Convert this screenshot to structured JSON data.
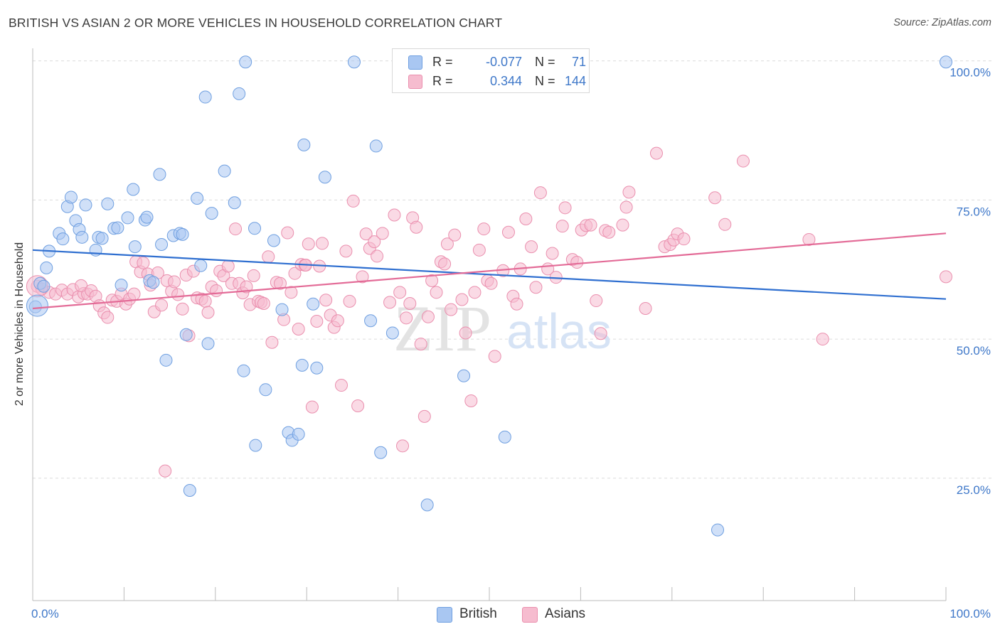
{
  "title": "BRITISH VS ASIAN 2 OR MORE VEHICLES IN HOUSEHOLD CORRELATION CHART",
  "source": "Source: ZipAtlas.com",
  "watermark": {
    "zip": "ZIP",
    "atlas": "atlas"
  },
  "legend": {
    "british": {
      "r_label": "R =",
      "r_value": "-0.077",
      "n_label": "N =",
      "n_value": "71"
    },
    "asians": {
      "r_label": "R =",
      "r_value": "0.344",
      "n_label": "N =",
      "n_value": "144"
    }
  },
  "bottom_legend": {
    "british": "British",
    "asians": "Asians"
  },
  "colors": {
    "british_fill": "#a9c7f2",
    "british_stroke": "#6f9fe0",
    "british_line": "#2f6fd0",
    "asians_fill": "#f6bccf",
    "asians_stroke": "#ea8fae",
    "asians_line": "#e36b97",
    "tick_text": "#3f78c9"
  },
  "chart_data": {
    "type": "scatter",
    "title": "BRITISH VS ASIAN 2 OR MORE VEHICLES IN HOUSEHOLD CORRELATION CHART",
    "xlabel": "",
    "ylabel": "2 or more Vehicles in Household",
    "xlim": [
      0,
      100
    ],
    "ylim": [
      3,
      102
    ],
    "x_tick_labels": [
      "0.0%",
      "100.0%"
    ],
    "y_ticks": [
      25,
      50,
      75,
      100
    ],
    "y_tick_labels": [
      "25.0%",
      "50.0%",
      "75.0%",
      "100.0%"
    ],
    "grid": true,
    "legend_position": "top-center",
    "series": [
      {
        "name": "British",
        "r": -0.077,
        "n": 71,
        "trend": {
          "x": [
            0,
            100
          ],
          "y": [
            66.0,
            57.2
          ]
        },
        "points": [
          [
            0.3,
            55.8
          ],
          [
            0.8,
            60.0
          ],
          [
            1.2,
            59.5
          ],
          [
            1.5,
            62.8
          ],
          [
            1.8,
            65.8
          ],
          [
            2.9,
            69.0
          ],
          [
            3.3,
            68.0
          ],
          [
            3.8,
            73.8
          ],
          [
            4.2,
            75.5
          ],
          [
            4.7,
            71.3
          ],
          [
            5.1,
            69.7
          ],
          [
            5.4,
            68.3
          ],
          [
            5.8,
            74.1
          ],
          [
            6.9,
            66.0
          ],
          [
            7.2,
            68.3
          ],
          [
            7.6,
            68.1
          ],
          [
            8.2,
            74.3
          ],
          [
            8.9,
            69.9
          ],
          [
            9.3,
            70.0
          ],
          [
            9.7,
            59.7
          ],
          [
            10.4,
            71.8
          ],
          [
            11.0,
            76.9
          ],
          [
            11.2,
            66.6
          ],
          [
            12.3,
            71.4
          ],
          [
            12.5,
            71.9
          ],
          [
            12.8,
            60.5
          ],
          [
            13.2,
            60.2
          ],
          [
            13.9,
            79.6
          ],
          [
            14.1,
            67.0
          ],
          [
            14.6,
            46.2
          ],
          [
            15.4,
            68.6
          ],
          [
            16.1,
            69.0
          ],
          [
            16.4,
            68.8
          ],
          [
            16.8,
            50.8
          ],
          [
            17.2,
            22.8
          ],
          [
            18.0,
            75.3
          ],
          [
            18.4,
            63.2
          ],
          [
            18.9,
            93.5
          ],
          [
            19.2,
            49.2
          ],
          [
            19.6,
            72.6
          ],
          [
            21.0,
            80.2
          ],
          [
            22.1,
            74.5
          ],
          [
            22.6,
            94.1
          ],
          [
            23.1,
            44.3
          ],
          [
            23.3,
            99.8
          ],
          [
            24.3,
            69.9
          ],
          [
            24.4,
            30.9
          ],
          [
            25.5,
            40.9
          ],
          [
            26.4,
            67.7
          ],
          [
            27.3,
            55.3
          ],
          [
            28.0,
            33.2
          ],
          [
            28.4,
            31.8
          ],
          [
            29.1,
            32.9
          ],
          [
            29.5,
            45.3
          ],
          [
            29.7,
            84.9
          ],
          [
            30.7,
            56.3
          ],
          [
            31.1,
            44.8
          ],
          [
            32.0,
            79.1
          ],
          [
            35.2,
            99.8
          ],
          [
            37.0,
            53.3
          ],
          [
            37.6,
            84.7
          ],
          [
            38.1,
            29.6
          ],
          [
            39.4,
            51.1
          ],
          [
            43.2,
            20.2
          ],
          [
            47.2,
            43.4
          ],
          [
            51.7,
            32.4
          ],
          [
            75.0,
            15.7
          ],
          [
            100.0,
            99.8
          ]
        ],
        "big_points": [
          [
            0.5,
            56.0
          ]
        ]
      },
      {
        "name": "Asians",
        "r": 0.344,
        "n": 144,
        "trend": {
          "x": [
            0,
            100
          ],
          "y": [
            55.5,
            69.0
          ]
        },
        "points": [
          [
            0.5,
            59.5
          ],
          [
            1.0,
            59.0
          ],
          [
            1.8,
            58.4
          ],
          [
            2.5,
            58.1
          ],
          [
            3.2,
            58.8
          ],
          [
            3.8,
            58.1
          ],
          [
            4.4,
            58.9
          ],
          [
            5.0,
            57.6
          ],
          [
            5.6,
            58.2
          ],
          [
            6.0,
            58.1
          ],
          [
            5.3,
            59.6
          ],
          [
            6.4,
            58.7
          ],
          [
            6.9,
            57.7
          ],
          [
            7.3,
            56.0
          ],
          [
            7.8,
            54.7
          ],
          [
            8.2,
            53.9
          ],
          [
            8.7,
            57.0
          ],
          [
            9.2,
            56.8
          ],
          [
            9.7,
            58.1
          ],
          [
            10.2,
            56.3
          ],
          [
            10.6,
            57.2
          ],
          [
            11.1,
            58.1
          ],
          [
            11.3,
            63.9
          ],
          [
            11.8,
            62.1
          ],
          [
            12.1,
            63.7
          ],
          [
            12.6,
            61.7
          ],
          [
            12.9,
            59.7
          ],
          [
            13.3,
            54.9
          ],
          [
            13.7,
            61.9
          ],
          [
            14.1,
            56.1
          ],
          [
            14.7,
            60.5
          ],
          [
            15.2,
            58.6
          ],
          [
            15.5,
            60.3
          ],
          [
            15.9,
            58.0
          ],
          [
            16.4,
            55.4
          ],
          [
            16.8,
            61.5
          ],
          [
            17.1,
            50.6
          ],
          [
            17.6,
            62.2
          ],
          [
            18.0,
            57.4
          ],
          [
            18.5,
            57.2
          ],
          [
            18.9,
            56.8
          ],
          [
            19.2,
            54.8
          ],
          [
            19.6,
            59.4
          ],
          [
            20.1,
            58.7
          ],
          [
            20.5,
            62.2
          ],
          [
            20.9,
            61.4
          ],
          [
            21.4,
            63.1
          ],
          [
            21.8,
            60.0
          ],
          [
            22.2,
            69.8
          ],
          [
            22.6,
            60.0
          ],
          [
            23.0,
            58.3
          ],
          [
            23.4,
            59.4
          ],
          [
            23.8,
            56.2
          ],
          [
            24.2,
            61.4
          ],
          [
            24.7,
            56.8
          ],
          [
            25.0,
            56.6
          ],
          [
            25.3,
            56.4
          ],
          [
            25.8,
            64.8
          ],
          [
            26.2,
            49.4
          ],
          [
            26.7,
            60.2
          ],
          [
            27.1,
            60.0
          ],
          [
            27.5,
            53.5
          ],
          [
            27.9,
            69.1
          ],
          [
            28.3,
            58.4
          ],
          [
            28.7,
            61.8
          ],
          [
            29.1,
            51.8
          ],
          [
            29.4,
            63.4
          ],
          [
            29.8,
            63.3
          ],
          [
            30.2,
            67.1
          ],
          [
            30.6,
            37.8
          ],
          [
            31.1,
            53.2
          ],
          [
            31.4,
            63.1
          ],
          [
            31.7,
            67.2
          ],
          [
            32.1,
            57.0
          ],
          [
            32.6,
            54.3
          ],
          [
            33.0,
            52.1
          ],
          [
            33.4,
            53.3
          ],
          [
            33.8,
            41.7
          ],
          [
            34.3,
            65.8
          ],
          [
            34.7,
            56.8
          ],
          [
            35.1,
            74.8
          ],
          [
            35.6,
            38.0
          ],
          [
            36.1,
            61.2
          ],
          [
            36.5,
            68.9
          ],
          [
            36.9,
            66.3
          ],
          [
            37.4,
            67.5
          ],
          [
            37.7,
            64.9
          ],
          [
            38.3,
            69.0
          ],
          [
            39.1,
            56.6
          ],
          [
            39.6,
            72.3
          ],
          [
            40.2,
            58.4
          ],
          [
            40.5,
            30.8
          ],
          [
            40.9,
            53.8
          ],
          [
            41.3,
            56.4
          ],
          [
            41.6,
            71.8
          ],
          [
            42.0,
            70.1
          ],
          [
            42.5,
            49.1
          ],
          [
            42.9,
            36.1
          ],
          [
            43.3,
            54.0
          ],
          [
            43.7,
            60.5
          ],
          [
            44.2,
            58.4
          ],
          [
            44.7,
            63.9
          ],
          [
            45.1,
            63.5
          ],
          [
            45.4,
            67.1
          ],
          [
            45.8,
            55.3
          ],
          [
            46.2,
            68.7
          ],
          [
            47.0,
            57.1
          ],
          [
            47.4,
            51.1
          ],
          [
            48.0,
            38.9
          ],
          [
            48.4,
            58.4
          ],
          [
            48.9,
            66.0
          ],
          [
            49.4,
            69.8
          ],
          [
            49.8,
            60.5
          ],
          [
            50.2,
            60.0
          ],
          [
            50.6,
            46.9
          ],
          [
            51.5,
            62.3
          ],
          [
            52.1,
            69.2
          ],
          [
            52.6,
            57.7
          ],
          [
            53.0,
            56.3
          ],
          [
            53.4,
            62.6
          ],
          [
            54.0,
            71.6
          ],
          [
            54.6,
            66.6
          ],
          [
            55.1,
            59.3
          ],
          [
            55.6,
            76.3
          ],
          [
            56.4,
            62.6
          ],
          [
            56.9,
            65.4
          ],
          [
            57.3,
            61.1
          ],
          [
            58.0,
            70.3
          ],
          [
            58.3,
            73.6
          ],
          [
            59.1,
            64.3
          ],
          [
            59.6,
            63.8
          ],
          [
            60.1,
            69.6
          ],
          [
            60.6,
            70.4
          ],
          [
            61.1,
            70.5
          ],
          [
            61.7,
            56.9
          ],
          [
            62.2,
            51.0
          ],
          [
            62.7,
            69.5
          ],
          [
            63.1,
            69.2
          ],
          [
            64.6,
            70.5
          ],
          [
            65.0,
            73.7
          ],
          [
            65.3,
            76.4
          ],
          [
            67.1,
            55.5
          ],
          [
            68.3,
            83.4
          ],
          [
            69.2,
            66.6
          ],
          [
            69.8,
            67.0
          ],
          [
            70.2,
            67.8
          ],
          [
            70.6,
            68.9
          ],
          [
            71.3,
            68.0
          ],
          [
            74.7,
            75.4
          ],
          [
            75.8,
            70.6
          ],
          [
            77.8,
            82.0
          ],
          [
            85.0,
            67.9
          ],
          [
            86.5,
            50.0
          ],
          [
            100.0,
            61.2
          ],
          [
            14.5,
            26.3
          ],
          [
            29.9,
            63.3
          ]
        ],
        "big_points": [
          [
            0.5,
            59.5
          ]
        ]
      }
    ]
  }
}
